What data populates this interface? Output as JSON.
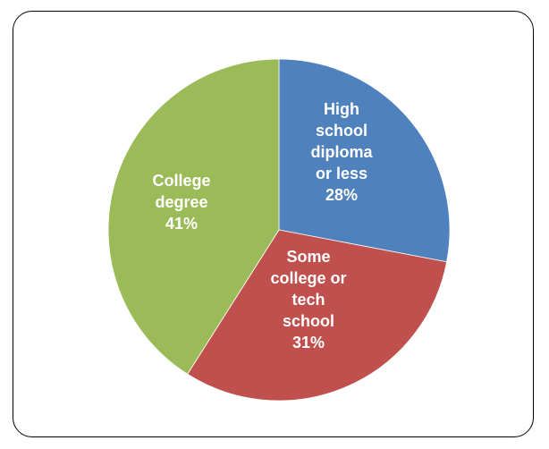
{
  "chart_data": {
    "type": "pie",
    "slices": [
      {
        "label_lines": [
          "High",
          "school",
          "diploma",
          "or less",
          "28%"
        ],
        "value": 28,
        "color": "#4F81BD"
      },
      {
        "label_lines": [
          "Some",
          "college or",
          "tech",
          "school",
          "31%"
        ],
        "value": 31,
        "color": "#C0504D"
      },
      {
        "label_lines": [
          "College",
          "degree",
          "41%"
        ],
        "value": 41,
        "color": "#9BBB59"
      }
    ],
    "start_angle_deg": 0,
    "direction": "clockwise",
    "legend": "none"
  }
}
